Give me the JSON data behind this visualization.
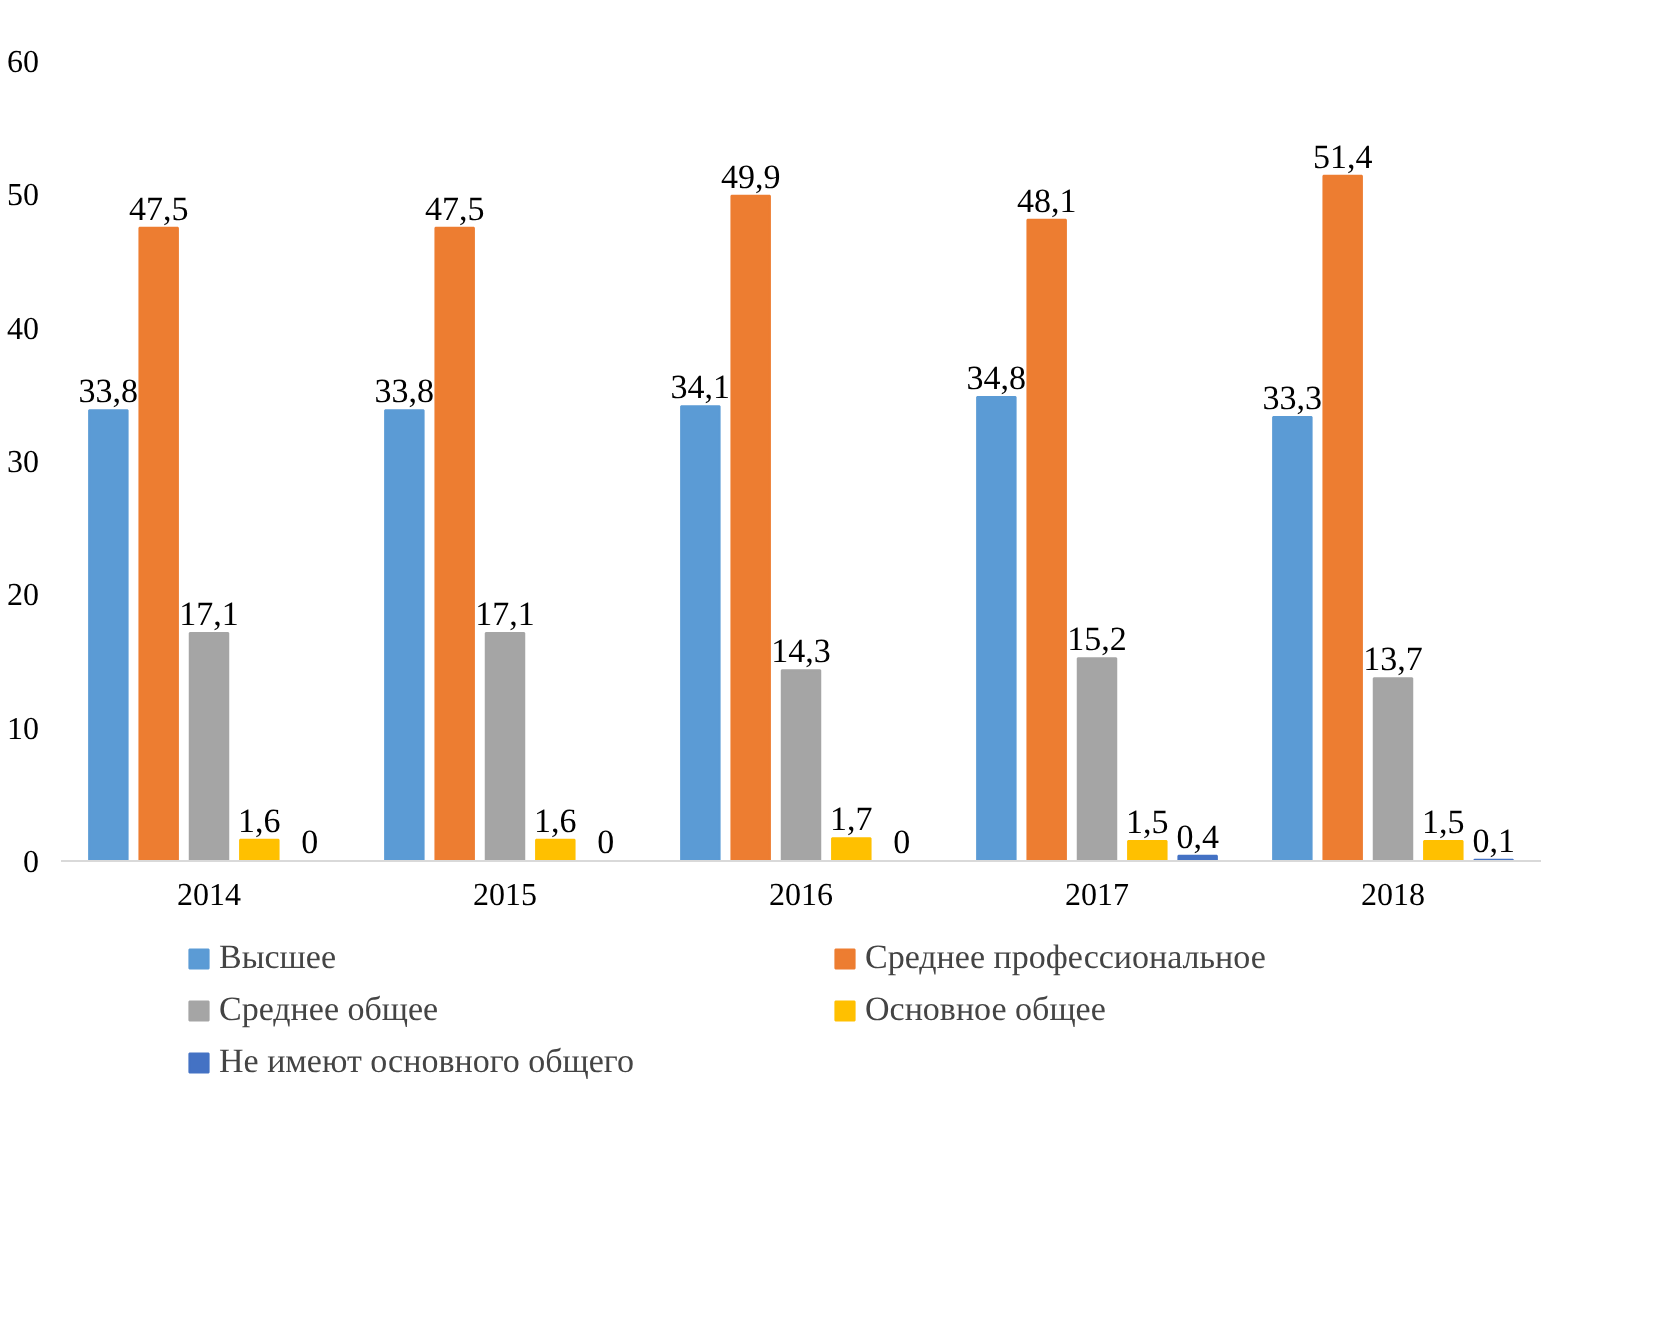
{
  "chart_data": {
    "type": "bar",
    "categories": [
      "2014",
      "2015",
      "2016",
      "2017",
      "2018"
    ],
    "series": [
      {
        "name": "Высшее",
        "color": "#5b9bd5",
        "values": [
          33.8,
          33.8,
          34.1,
          34.8,
          33.3
        ],
        "value_labels": [
          "33,8",
          "33,8",
          "34,1",
          "34,8",
          "33,3"
        ]
      },
      {
        "name": "Среднее профессиональное",
        "color": "#ed7d31",
        "values": [
          47.5,
          47.5,
          49.9,
          48.1,
          51.4
        ],
        "value_labels": [
          "47,5",
          "47,5",
          "49,9",
          "48,1",
          "51,4"
        ]
      },
      {
        "name": "Среднее общее",
        "color": "#a5a5a5",
        "values": [
          17.1,
          17.1,
          14.3,
          15.2,
          13.7
        ],
        "value_labels": [
          "17,1",
          "17,1",
          "14,3",
          "15,2",
          "13,7"
        ]
      },
      {
        "name": "Основное общее",
        "color": "#ffc000",
        "values": [
          1.6,
          1.6,
          1.7,
          1.5,
          1.5
        ],
        "value_labels": [
          "1,6",
          "1,6",
          "1,7",
          "1,5",
          "1,5"
        ]
      },
      {
        "name": "Не имеют основного общего",
        "color": "#4472c4",
        "values": [
          0,
          0,
          0,
          0.4,
          0.1
        ],
        "value_labels": [
          "0",
          "0",
          "0",
          "0,4",
          "0,1"
        ]
      }
    ],
    "ylim": [
      0,
      60
    ],
    "yticks": [
      0,
      10,
      20,
      30,
      40,
      50,
      60
    ],
    "grid": false,
    "legend": "bottom"
  }
}
